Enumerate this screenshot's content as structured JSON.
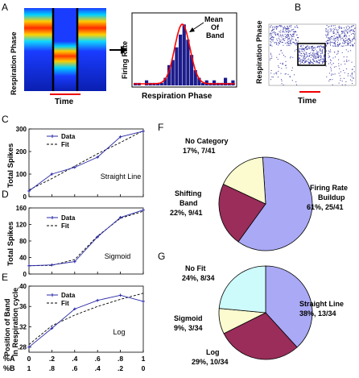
{
  "panels": {
    "A": {
      "letter": "A",
      "heatmap_ylabel": "Respiration Phase",
      "heatmap_xlabel": "Time",
      "hist_ylabel": "Firing Rate",
      "hist_xlabel": "Respiration Phase",
      "annotation": [
        "Mean",
        "Of",
        "Band"
      ]
    },
    "B": {
      "letter": "B",
      "ylabel": "Respiration Phase",
      "xlabel": "Time"
    },
    "C": {
      "letter": "C"
    },
    "D": {
      "letter": "D"
    },
    "E": {
      "letter": "E"
    },
    "F": {
      "letter": "F"
    },
    "G": {
      "letter": "G"
    }
  },
  "xaxis_bottom": {
    "row1_label": "%A",
    "row1": [
      "0",
      ".2",
      ".4",
      ".6",
      ".8",
      "1"
    ],
    "row2_label": "%B",
    "row2": [
      "1",
      ".8",
      ".6",
      ".4",
      ".2",
      "0"
    ]
  },
  "colors": {
    "data": "#2a2aa8",
    "fit": "#000000",
    "pie_blue": "#a9a9f5",
    "pie_maroon": "#9a2d5a",
    "pie_yellow": "#fbfbcf",
    "pie_cyan": "#cdfbfb",
    "hist_bar": "#1c1c8c",
    "hist_fit": "#ff0000"
  },
  "chart_data": [
    {
      "type": "line",
      "panel": "C",
      "ylabel": "Total Spikes",
      "ylim": [
        0,
        300
      ],
      "yticks": [
        "0",
        "100",
        "200",
        "300"
      ],
      "legend": [
        "Data",
        "Fit"
      ],
      "annotation": "Straight Line",
      "x": [
        0,
        0.2,
        0.4,
        0.6,
        0.8,
        1.0
      ],
      "series": [
        {
          "name": "Data",
          "values": [
            25,
            100,
            130,
            175,
            265,
            290
          ]
        },
        {
          "name": "Fit",
          "values": [
            30,
            80,
            135,
            190,
            240,
            292
          ]
        }
      ]
    },
    {
      "type": "line",
      "panel": "D",
      "ylabel": "Total Spikes",
      "ylim": [
        0,
        160
      ],
      "yticks": [
        "0",
        "40",
        "80",
        "120",
        "160"
      ],
      "legend": [
        "Data",
        "Fit"
      ],
      "annotation": "Sigmoid",
      "x": [
        0,
        0.2,
        0.4,
        0.6,
        0.8,
        1.0
      ],
      "series": [
        {
          "name": "Data",
          "values": [
            20,
            22,
            30,
            90,
            137,
            155
          ]
        },
        {
          "name": "Fit",
          "values": [
            20,
            21,
            35,
            92,
            135,
            152
          ]
        }
      ]
    },
    {
      "type": "line",
      "panel": "E",
      "ylabel": "Position of Band In Respiration cycle",
      "ylim": [
        0.27,
        0.4
      ],
      "yticks": [
        ".28",
        ".32",
        ".36",
        ".40"
      ],
      "legend": [
        "Data",
        "Fit"
      ],
      "annotation": "Log",
      "x": [
        0,
        0.2,
        0.4,
        0.6,
        0.8,
        1.0
      ],
      "series": [
        {
          "name": "Data",
          "values": [
            0.28,
            0.317,
            0.355,
            0.372,
            0.382,
            0.37
          ]
        },
        {
          "name": "Fit",
          "values": [
            0.285,
            0.322,
            0.343,
            0.36,
            0.374,
            0.386
          ]
        }
      ]
    },
    {
      "type": "pie",
      "panel": "F",
      "slices": [
        {
          "label": "Firing Rate Buildup",
          "pct": "61%",
          "count": "25/41",
          "value": 25,
          "color": "#a9a9f5"
        },
        {
          "label": "Shifting Band",
          "pct": "22%",
          "count": "9/41",
          "value": 9,
          "color": "#9a2d5a"
        },
        {
          "label": "No Category",
          "pct": "17%",
          "count": "7/41",
          "value": 7,
          "color": "#fbfbcf"
        }
      ]
    },
    {
      "type": "pie",
      "panel": "G",
      "slices": [
        {
          "label": "Straight Line",
          "pct": "38%",
          "count": "13/34",
          "value": 13,
          "color": "#a9a9f5"
        },
        {
          "label": "Log",
          "pct": "29%",
          "count": "10/34",
          "value": 10,
          "color": "#9a2d5a"
        },
        {
          "label": "Sigmoid",
          "pct": "9%",
          "count": "3/34",
          "value": 3,
          "color": "#fbfbcf"
        },
        {
          "label": "No Fit",
          "pct": "24%",
          "count": "8/34",
          "value": 8,
          "color": "#cdfbfb"
        }
      ]
    },
    {
      "type": "bar",
      "panel": "A-histogram",
      "values": [
        1,
        1,
        0,
        2,
        1,
        1,
        1,
        1,
        3,
        8,
        10,
        15,
        20,
        24,
        18,
        12,
        6,
        3,
        1,
        2,
        1,
        2,
        1,
        1,
        3,
        1,
        2
      ],
      "fit": "gaussian"
    }
  ]
}
